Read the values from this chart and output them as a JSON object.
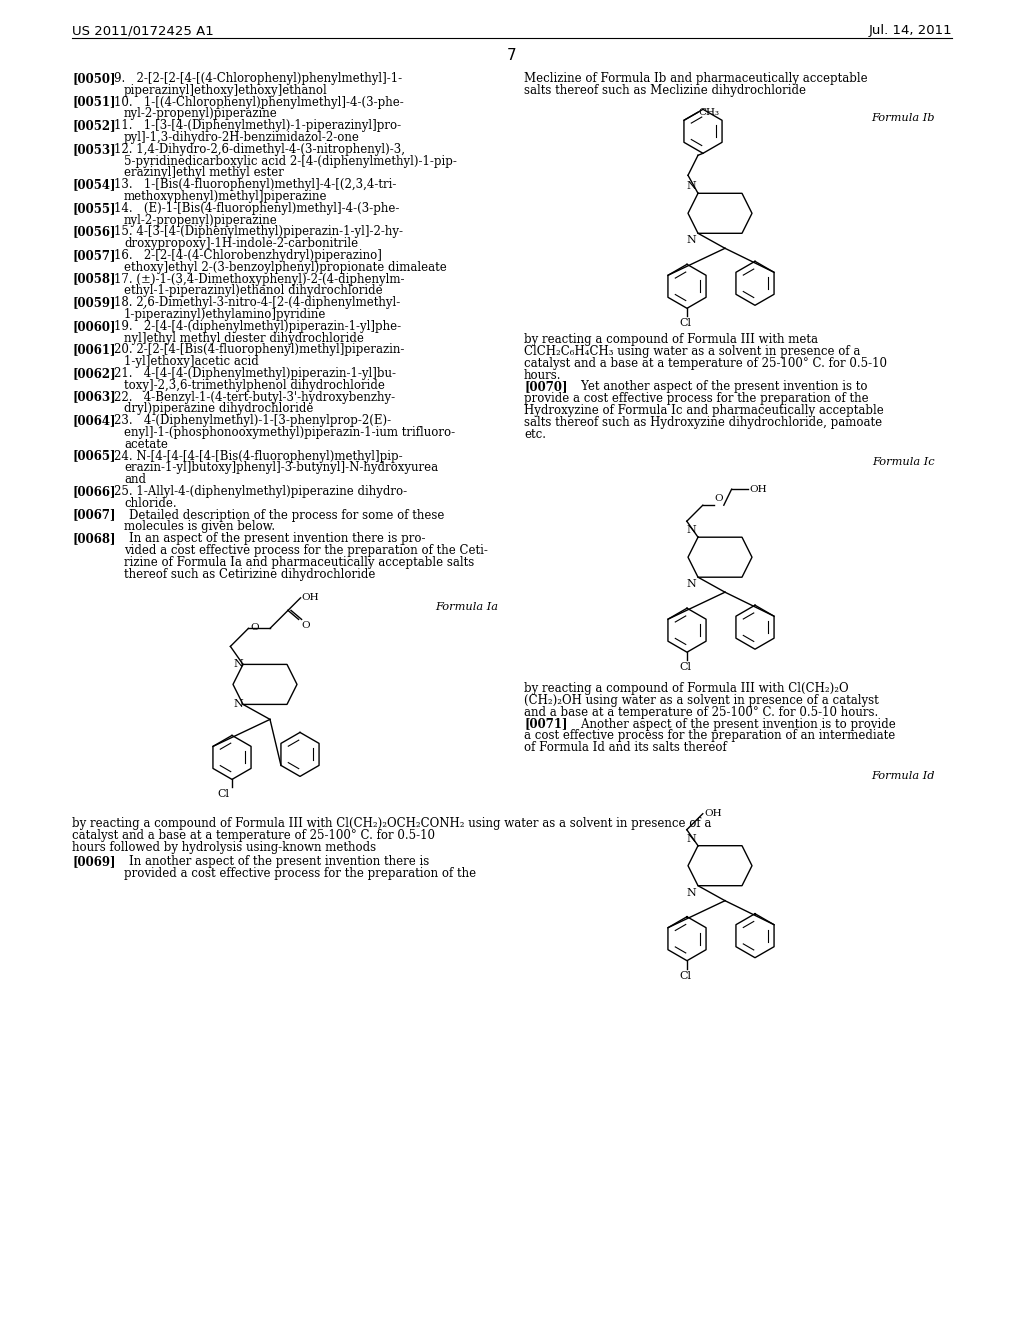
{
  "header_left": "US 2011/0172425 A1",
  "header_right": "Jul. 14, 2011",
  "page_number": "7",
  "background_color": "#ffffff",
  "body_fontsize": 8.5,
  "left_entries": [
    {
      "tag": "[0050]",
      "indent": "9.   ",
      "lines": [
        "2-[2-[2-[4-[(4-Chlorophenyl)phenylmethyl]-1-",
        "piperazinyl]ethoxy]ethoxy]ethanol"
      ]
    },
    {
      "tag": "[0051]",
      "indent": "10.   ",
      "lines": [
        "1-[(4-Chlorophenyl)phenylmethyl]-4-(3-phe-",
        "nyl-2-propenyl)piperazine"
      ]
    },
    {
      "tag": "[0052]",
      "indent": "11.   ",
      "lines": [
        "1-[3-[4-(Diphenylmethyl)-1-piperazinyl]pro-",
        "pyl]-1,3-dihydro-2H-benzimidazol-2-one"
      ]
    },
    {
      "tag": "[0053]",
      "indent": "12. ",
      "lines": [
        "1,4-Dihydro-2,6-dimethyl-4-(3-nitrophenyl)-3,",
        "5-pyridinedicarboxylic acid 2-[4-(diphenylmethyl)-1-pip-",
        "erazinyl]ethyl methyl ester"
      ]
    },
    {
      "tag": "[0054]",
      "indent": "13.   ",
      "lines": [
        "1-[Bis(4-fluorophenyl)methyl]-4-[(2,3,4-tri-",
        "methoxyphenyl)methyl]piperazine"
      ]
    },
    {
      "tag": "[0055]",
      "indent": "14.   ",
      "lines": [
        "(E)-1-[Bis(4-fluorophenyl)methyl]-4-(3-phe-",
        "nyl-2-propenyl)piperazine"
      ]
    },
    {
      "tag": "[0056]",
      "indent": "15. ",
      "lines": [
        "4-[3-[4-(Diphenylmethyl)piperazin-1-yl]-2-hy-",
        "droxypropoxy]-1H-indole-2-carbonitrile"
      ]
    },
    {
      "tag": "[0057]",
      "indent": "16.   ",
      "lines": [
        "2-[2-[4-(4-Chlorobenzhydryl)piperazino]",
        "ethoxy]ethyl 2-(3-benzoylphenyl)propionate dimaleate"
      ]
    },
    {
      "tag": "[0058]",
      "indent": "17. ",
      "lines": "(±)-1-(3,4-Dimethoxyphenyl)-2-(4-diphenylm-\nethyl-1-piperazinyl)ethanol dihydrochloride"
    },
    {
      "tag": "[0059]",
      "indent": "18. ",
      "lines": "2,6-Dimethyl-3-nitro-4-[2-(4-diphenylmethyl-\n1-piperazinyl)ethylamino]pyridine"
    },
    {
      "tag": "[0060]",
      "indent": "19.   ",
      "lines": "2-[4-[4-(diphenylmethyl)piperazin-1-yl]phe-\nnyl]ethyl methyl diester dihydrochloride"
    },
    {
      "tag": "[0061]",
      "indent": "20. ",
      "lines": "2-[2-[4-[Bis(4-fluorophenyl)methyl]piperazin-\n1-yl]ethoxy]acetic acid"
    },
    {
      "tag": "[0062]",
      "indent": "21.   ",
      "lines": "4-[4-[4-(Diphenylmethyl)piperazin-1-yl]bu-\ntoxy]-2,3,6-trimethylphenol dihydrochloride"
    },
    {
      "tag": "[0063]",
      "indent": "22.   ",
      "lines": "4-Benzyl-1-(4-tert-butyl-3'-hydroxybenzhy-\ndryl)piperazine dihydrochloride"
    },
    {
      "tag": "[0064]",
      "indent": "23.   ",
      "lines": "4-(Diphenylmethyl)-1-[3-phenylprop-2(E)-\nenyl]-1-(phosphonooxymethyl)piperazin-1-ium trifluoro-\nacetate"
    },
    {
      "tag": "[0065]",
      "indent": "24. ",
      "lines": "N-[4-[4-[4-[4-[Bis(4-fluorophenyl)methyl]pip-\nerazin-1-yl]butoxy]phenyl]-3-butynyl]-N-hydroxyurea\nand"
    },
    {
      "tag": "[0066]",
      "indent": "25. ",
      "lines": "1-Allyl-4-(diphenylmethyl)piperazine dihydro-\nchloride."
    },
    {
      "tag": "[0067]",
      "indent": "    ",
      "lines": "Detailed description of the process for some of these\nmolecules is given below."
    },
    {
      "tag": "[0068]",
      "indent": "    ",
      "lines": "In an aspect of the present invention there is pro-\nvided a cost effective process for the preparation of the Ceti-\nrizine of Formula Ia and pharmaceutically acceptable salts\nthereof such as Cetirizine dihydrochloride"
    }
  ]
}
